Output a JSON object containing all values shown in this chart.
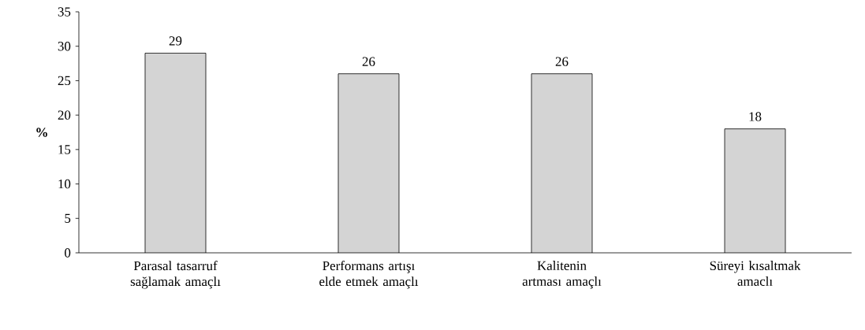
{
  "chart_data": {
    "type": "bar",
    "ylabel": "%",
    "categories": [
      "Parasal tasarruf sağlamak amaçlı",
      "Performans artışı elde etmek amaçlı",
      "Kalitenin artması amaçlı",
      "Süreyi kısaltmak amaclı"
    ],
    "values": [
      29,
      26,
      26,
      18
    ],
    "color": "#d4d4d4",
    "data_labels": true,
    "ylim": [
      0,
      35
    ],
    "yticks": [
      0,
      5,
      10,
      15,
      20,
      25,
      30,
      35
    ],
    "grid": false
  }
}
